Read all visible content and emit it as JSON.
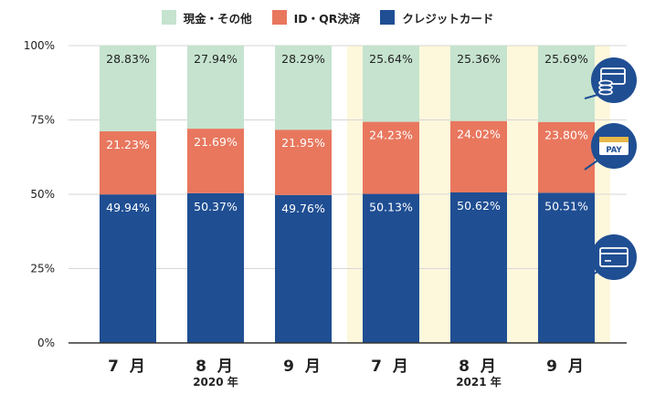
{
  "legend": [
    {
      "label": "現金・その他",
      "color": "#c5e3cf"
    },
    {
      "label": "ID・QR決済",
      "color": "#e8775e"
    },
    {
      "label": "クレジットカード",
      "color": "#1f4e93"
    }
  ],
  "chart_data": {
    "type": "bar",
    "stacked": true,
    "categories": [
      "7 月",
      "8 月",
      "9 月",
      "7 月",
      "8 月",
      "9 月"
    ],
    "groups": [
      {
        "label": "2020 年",
        "categories": [
          0,
          1,
          2
        ],
        "highlight": false
      },
      {
        "label": "2021 年",
        "categories": [
          3,
          4,
          5
        ],
        "highlight": true
      }
    ],
    "series": [
      {
        "name": "クレジットカード",
        "values": [
          49.94,
          50.37,
          49.76,
          50.13,
          50.62,
          50.51
        ],
        "labels": [
          "49.94%",
          "50.37%",
          "49.76%",
          "50.13%",
          "50.62%",
          "50.51%"
        ]
      },
      {
        "name": "ID・QR決済",
        "values": [
          21.23,
          21.69,
          21.95,
          24.23,
          24.02,
          23.8
        ],
        "labels": [
          "21.23%",
          "21.69%",
          "21.95%",
          "24.23%",
          "24.02%",
          "23.80%"
        ]
      },
      {
        "name": "現金・その他",
        "values": [
          28.83,
          27.94,
          28.29,
          25.64,
          25.36,
          25.69
        ],
        "labels": [
          "28.83%",
          "27.94%",
          "28.29%",
          "25.64%",
          "25.36%",
          "25.69%"
        ]
      }
    ],
    "yticks": [
      "0%",
      "25%",
      "50%",
      "75%",
      "100%"
    ],
    "ylim": [
      0,
      100
    ],
    "grid": true,
    "legend_position": "top",
    "highlight_color": "#fdf8dc",
    "icons": [
      {
        "name": "cash-icon",
        "series": "現金・その他"
      },
      {
        "name": "pay-card-icon",
        "series": "ID・QR決済",
        "text": "PAY"
      },
      {
        "name": "credit-card-icon",
        "series": "クレジットカード"
      }
    ],
    "icon_color": "#1f4e93"
  }
}
